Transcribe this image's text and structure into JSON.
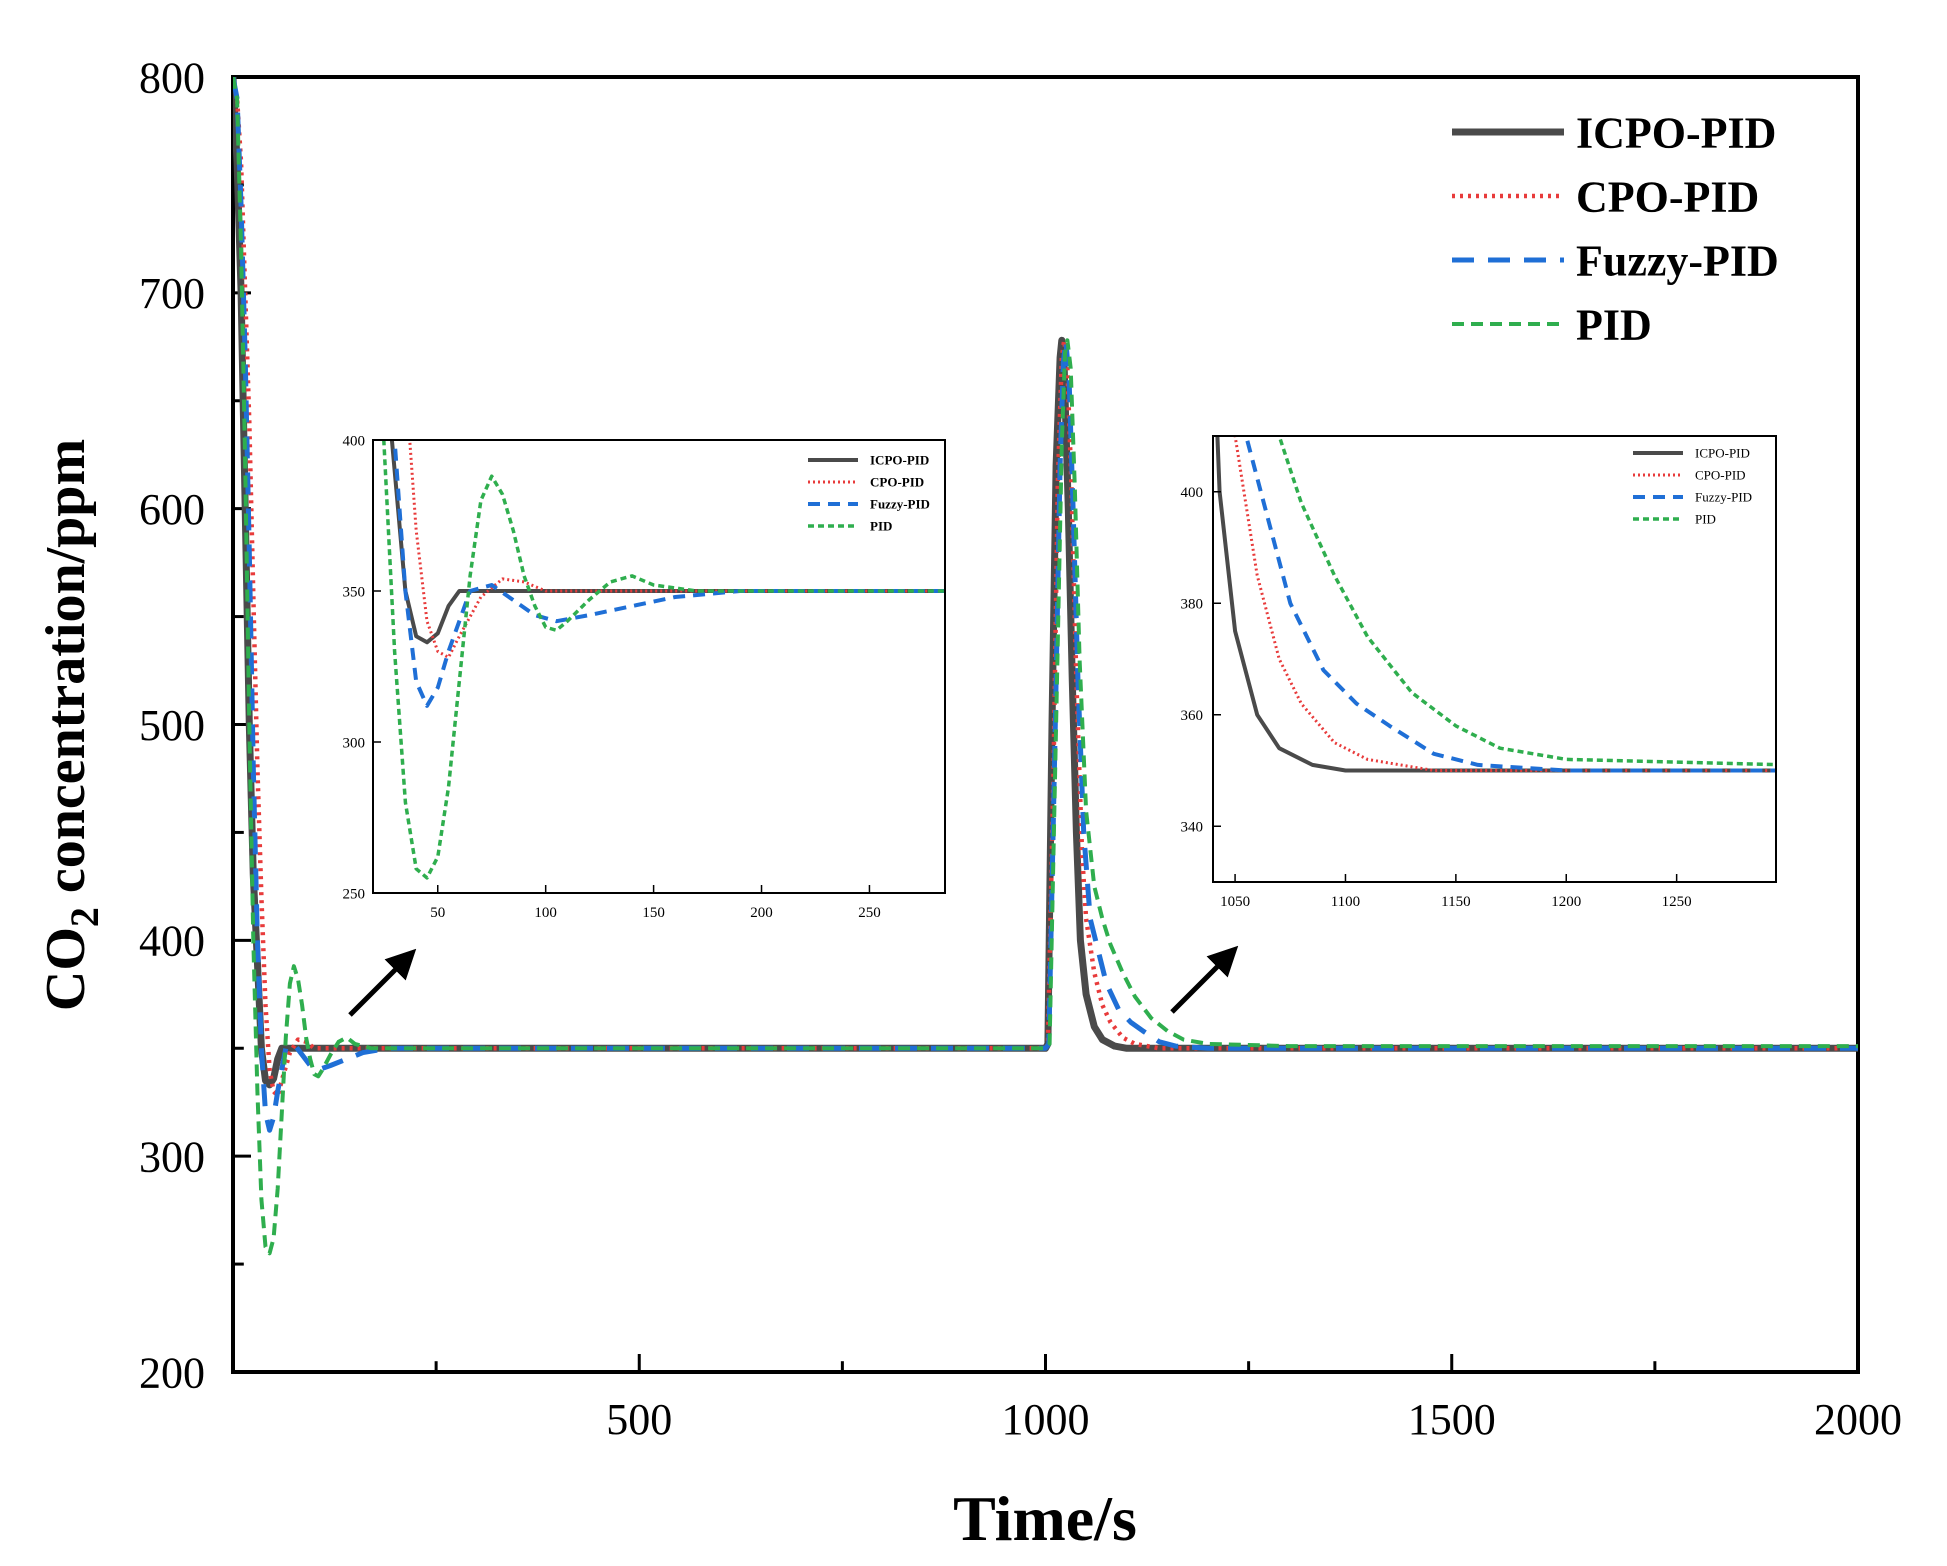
{
  "chart_data": [
    {
      "id": "main",
      "type": "line",
      "title": "",
      "xlabel": "Time/s",
      "ylabel_main": "CO",
      "ylabel_sub": "2",
      "ylabel_rest": " concentration/ppm",
      "xlim": [
        0,
        2000
      ],
      "ylim": [
        200,
        800
      ],
      "xticks": [
        500,
        1000,
        1500,
        2000
      ],
      "xtick_labels": [
        "500",
        "1000",
        "1500",
        "2000"
      ],
      "xminor": [
        250,
        750,
        1250,
        1750
      ],
      "yticks": [
        200,
        300,
        400,
        500,
        600,
        700,
        800
      ],
      "ytick_labels": [
        "200",
        "300",
        "400",
        "500",
        "600",
        "700",
        "800"
      ],
      "yminor": [
        250,
        350,
        450,
        550,
        650,
        750
      ],
      "legend_position": "top-right",
      "series": [
        {
          "name": "ICPO-PID",
          "color": "#4a4a4a",
          "style": "solid",
          "points": [
            [
              0,
              800
            ],
            [
              5,
              760
            ],
            [
              10,
              700
            ],
            [
              15,
              600
            ],
            [
              20,
              500
            ],
            [
              25,
              430
            ],
            [
              30,
              390
            ],
            [
              35,
              350
            ],
            [
              40,
              335
            ],
            [
              45,
              333
            ],
            [
              50,
              336
            ],
            [
              55,
              345
            ],
            [
              60,
              350
            ],
            [
              80,
              350
            ],
            [
              200,
              350
            ],
            [
              600,
              350
            ],
            [
              1000,
              350
            ],
            [
              1003,
              352
            ],
            [
              1008,
              500
            ],
            [
              1013,
              620
            ],
            [
              1018,
              670
            ],
            [
              1020,
              678
            ],
            [
              1023,
              665
            ],
            [
              1028,
              600
            ],
            [
              1033,
              520
            ],
            [
              1038,
              450
            ],
            [
              1043,
              400
            ],
            [
              1050,
              375
            ],
            [
              1060,
              360
            ],
            [
              1070,
              354
            ],
            [
              1085,
              351
            ],
            [
              1100,
              350
            ],
            [
              1300,
              350
            ],
            [
              2000,
              350
            ]
          ]
        },
        {
          "name": "CPO-PID",
          "color": "#e83b3b",
          "style": "dotted",
          "points": [
            [
              0,
              800
            ],
            [
              5,
              790
            ],
            [
              10,
              760
            ],
            [
              15,
              700
            ],
            [
              20,
              640
            ],
            [
              25,
              560
            ],
            [
              30,
              480
            ],
            [
              35,
              420
            ],
            [
              40,
              370
            ],
            [
              45,
              340
            ],
            [
              50,
              330
            ],
            [
              55,
              328
            ],
            [
              60,
              335
            ],
            [
              70,
              348
            ],
            [
              80,
              354
            ],
            [
              90,
              353
            ],
            [
              100,
              350
            ],
            [
              200,
              350
            ],
            [
              600,
              350
            ],
            [
              1000,
              350
            ],
            [
              1003,
              352
            ],
            [
              1010,
              480
            ],
            [
              1015,
              610
            ],
            [
              1020,
              670
            ],
            [
              1023,
              678
            ],
            [
              1027,
              665
            ],
            [
              1032,
              610
            ],
            [
              1038,
              520
            ],
            [
              1045,
              440
            ],
            [
              1050,
              410
            ],
            [
              1060,
              385
            ],
            [
              1070,
              370
            ],
            [
              1080,
              362
            ],
            [
              1095,
              355
            ],
            [
              1110,
              352
            ],
            [
              1140,
              350
            ],
            [
              1300,
              350
            ],
            [
              2000,
              350
            ]
          ]
        },
        {
          "name": "Fuzzy-PID",
          "color": "#1f6fd6",
          "style": "dashed",
          "points": [
            [
              0,
              800
            ],
            [
              5,
              790
            ],
            [
              10,
              740
            ],
            [
              15,
              670
            ],
            [
              20,
              580
            ],
            [
              25,
              480
            ],
            [
              30,
              400
            ],
            [
              35,
              350
            ],
            [
              40,
              320
            ],
            [
              45,
              312
            ],
            [
              50,
              318
            ],
            [
              55,
              330
            ],
            [
              65,
              350
            ],
            [
              75,
              352
            ],
            [
              85,
              347
            ],
            [
              95,
              342
            ],
            [
              105,
              340
            ],
            [
              120,
              342
            ],
            [
              140,
              345
            ],
            [
              160,
              348
            ],
            [
              190,
              350
            ],
            [
              600,
              350
            ],
            [
              1000,
              350
            ],
            [
              1004,
              352
            ],
            [
              1012,
              500
            ],
            [
              1018,
              620
            ],
            [
              1022,
              668
            ],
            [
              1025,
              678
            ],
            [
              1029,
              660
            ],
            [
              1034,
              600
            ],
            [
              1040,
              520
            ],
            [
              1047,
              450
            ],
            [
              1055,
              410
            ],
            [
              1065,
              395
            ],
            [
              1075,
              380
            ],
            [
              1090,
              368
            ],
            [
              1105,
              362
            ],
            [
              1120,
              358
            ],
            [
              1140,
              353
            ],
            [
              1160,
              351
            ],
            [
              1200,
              350
            ],
            [
              1400,
              350
            ],
            [
              2000,
              350
            ]
          ]
        },
        {
          "name": "PID",
          "color": "#2fae4e",
          "style": "dashed-dense",
          "points": [
            [
              0,
              800
            ],
            [
              5,
              790
            ],
            [
              10,
              720
            ],
            [
              15,
              620
            ],
            [
              20,
              500
            ],
            [
              25,
              400
            ],
            [
              30,
              330
            ],
            [
              35,
              280
            ],
            [
              40,
              258
            ],
            [
              45,
              255
            ],
            [
              50,
              262
            ],
            [
              55,
              285
            ],
            [
              60,
              320
            ],
            [
              65,
              355
            ],
            [
              70,
              380
            ],
            [
              75,
              388
            ],
            [
              80,
              382
            ],
            [
              85,
              370
            ],
            [
              90,
              355
            ],
            [
              95,
              345
            ],
            [
              100,
              338
            ],
            [
              105,
              337
            ],
            [
              110,
              340
            ],
            [
              120,
              347
            ],
            [
              130,
              353
            ],
            [
              140,
              355
            ],
            [
              150,
              352
            ],
            [
              170,
              350
            ],
            [
              200,
              350
            ],
            [
              600,
              350
            ],
            [
              1000,
              350
            ],
            [
              1005,
              352
            ],
            [
              1013,
              500
            ],
            [
              1020,
              630
            ],
            [
              1024,
              672
            ],
            [
              1027,
              678
            ],
            [
              1031,
              665
            ],
            [
              1036,
              610
            ],
            [
              1042,
              530
            ],
            [
              1050,
              460
            ],
            [
              1060,
              425
            ],
            [
              1070,
              410
            ],
            [
              1080,
              398
            ],
            [
              1095,
              385
            ],
            [
              1110,
              374
            ],
            [
              1130,
              364
            ],
            [
              1150,
              358
            ],
            [
              1170,
              354
            ],
            [
              1200,
              352
            ],
            [
              1300,
              351
            ],
            [
              1400,
              351
            ],
            [
              2000,
              351
            ]
          ]
        }
      ]
    },
    {
      "id": "inset1",
      "type": "line",
      "xlim": [
        20,
        285
      ],
      "ylim": [
        250,
        400
      ],
      "xticks": [
        50,
        100,
        150,
        200,
        250
      ],
      "xtick_labels": [
        "50",
        "100",
        "150",
        "200",
        "250"
      ],
      "yticks": [
        250,
        300,
        350,
        400
      ],
      "ytick_labels": [
        "250",
        "300",
        "350",
        "400"
      ],
      "legend_position": "top-right"
    },
    {
      "id": "inset2",
      "type": "line",
      "xlim": [
        1040,
        1295
      ],
      "ylim": [
        330,
        410
      ],
      "xticks": [
        1050,
        1100,
        1150,
        1200,
        1250
      ],
      "xtick_labels": [
        "1050",
        "1100",
        "1150",
        "1200",
        "1250"
      ],
      "yticks": [
        340,
        360,
        380,
        400
      ],
      "ytick_labels": [
        "340",
        "360",
        "380",
        "400"
      ],
      "legend_position": "top-right"
    }
  ]
}
